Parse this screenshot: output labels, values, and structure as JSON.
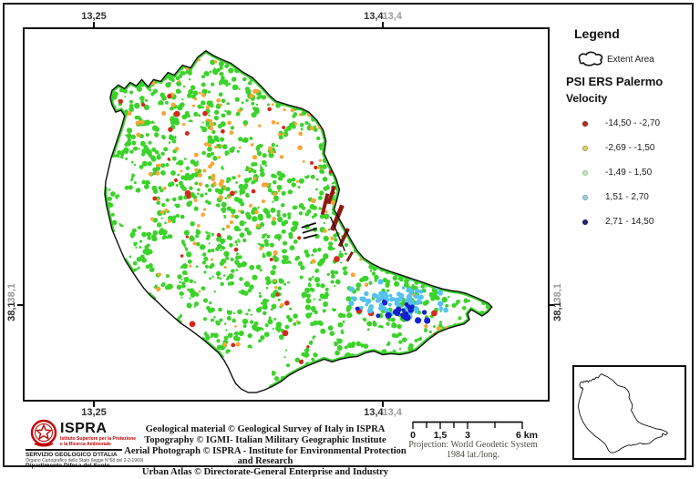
{
  "coords": {
    "top_left": "13,25",
    "top_right_black": "13,4",
    "top_right_gray": "13,4",
    "bottom_left": "13,25",
    "bottom_right_black": "13,4",
    "bottom_right_gray": "13,4",
    "left_black": "38,1",
    "left_gray": "38,1",
    "right_black": "38,1",
    "right_gray": "38,1"
  },
  "legend": {
    "title": "Legend",
    "extent_area_label": "Extent Area",
    "layer_title": "PSI ERS Palermo",
    "layer_subtitle": "Velocity",
    "classes": [
      {
        "label": "-14,50 - -2,70",
        "color": "#c5271d",
        "border": "#8a1a12"
      },
      {
        "label": "-2,69 - -1,50",
        "color": "#d9d06a",
        "border": "#a89b3a"
      },
      {
        "label": "-1,49 - 1,50",
        "color": "#c9e4bc",
        "border": "#9cc389"
      },
      {
        "label": "1,51 - 2,70",
        "color": "#9fd0de",
        "border": "#6aa7bd"
      },
      {
        "label": "2,71 - 14,50",
        "color": "#23237e",
        "border": "#15154d"
      }
    ]
  },
  "scalebar": {
    "labels": [
      "0",
      "1,5",
      "3",
      "6 km"
    ]
  },
  "projection": {
    "line1": "Projection: World Geodetic System",
    "line2": "1984 lat./long."
  },
  "credits": {
    "lines": [
      "Geological material © Geological Survey of  Italy in ISPRA",
      "Topography © IGMI- Italian Military Geographic Institute",
      "Aerial Photograph © ISPRA - Institute for Environmental Protection and Research",
      "Urban Atlas © Directorate-General Enterprise and Industry"
    ]
  },
  "agency": {
    "name": "ISPRA",
    "subtitle_line1": "Istituto Superiore per la Protezione",
    "subtitle_line2": "e la Ricerca Ambientale",
    "dept_line1": "SERVIZIO GEOLOGICO D'ITALIA",
    "dept_line2": "Organo Cartografico dello Stato (legge N°68 del 2-2-1960)",
    "dept_line3": "Dipartimento Difesa del Suolo",
    "logo_color": "#c00000"
  },
  "map_render": {
    "seed": 1337,
    "colors": {
      "green": "#3bd32a",
      "orange": "#f7a636",
      "red": "#d6281c",
      "light_blue": "#54c2f0",
      "dark_blue": "#1520ce",
      "dark_red": "#8e1b10",
      "boundary": "#0d0d0d"
    },
    "counts": {
      "green": 2400,
      "green_small": 700,
      "orange": 250,
      "red": 46,
      "light_blue": 85,
      "dark_blue": 18,
      "cyan_stray": 8
    }
  }
}
